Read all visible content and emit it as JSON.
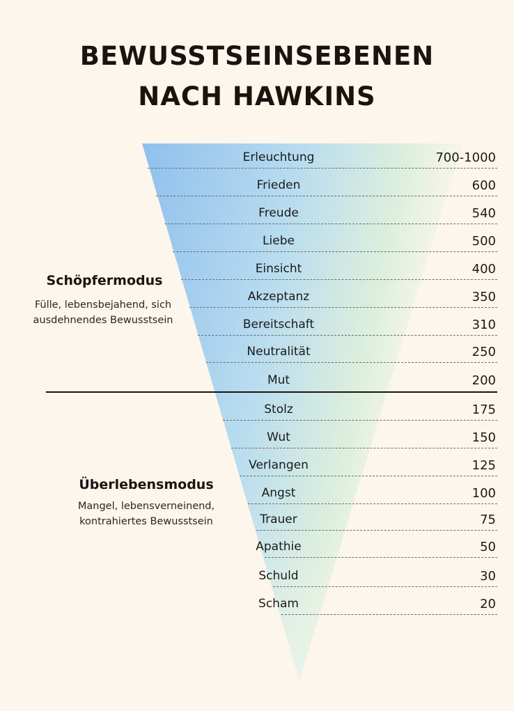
{
  "title": {
    "line1": "BEWUSSTSEINSEBENEN",
    "line2": "NACH HAWKINS"
  },
  "modes": {
    "creator": {
      "title": "Schöpfermodus",
      "desc_line1": "Fülle, lebensbejahend, sich",
      "desc_line2": "ausdehnendes Bewusstsein"
    },
    "survival": {
      "title": "Überlebensmodus",
      "desc_line1": "Mangel, lebensverneinend,",
      "desc_line2": "kontrahiertes Bewusstsein"
    }
  },
  "levels": [
    {
      "name": "Erleuchtung",
      "value": "700-1000"
    },
    {
      "name": "Frieden",
      "value": "600"
    },
    {
      "name": "Freude",
      "value": "540"
    },
    {
      "name": "Liebe",
      "value": "500"
    },
    {
      "name": "Einsicht",
      "value": "400"
    },
    {
      "name": "Akzeptanz",
      "value": "350"
    },
    {
      "name": "Bereitschaft",
      "value": "310"
    },
    {
      "name": "Neutralität",
      "value": "250"
    },
    {
      "name": "Mut",
      "value": "200"
    },
    {
      "name": "Stolz",
      "value": "175"
    },
    {
      "name": "Wut",
      "value": "150"
    },
    {
      "name": "Verlangen",
      "value": "125"
    },
    {
      "name": "Angst",
      "value": "100"
    },
    {
      "name": "Trauer",
      "value": "75"
    },
    {
      "name": "Apathie",
      "value": "50"
    },
    {
      "name": "Schuld",
      "value": "30"
    },
    {
      "name": "Scham",
      "value": "20"
    }
  ],
  "colors": {
    "background": "#fdf6ec",
    "gradient_blue": "#9ec9ee",
    "gradient_green": "#e2f1dc",
    "divider": "#1a1412"
  }
}
